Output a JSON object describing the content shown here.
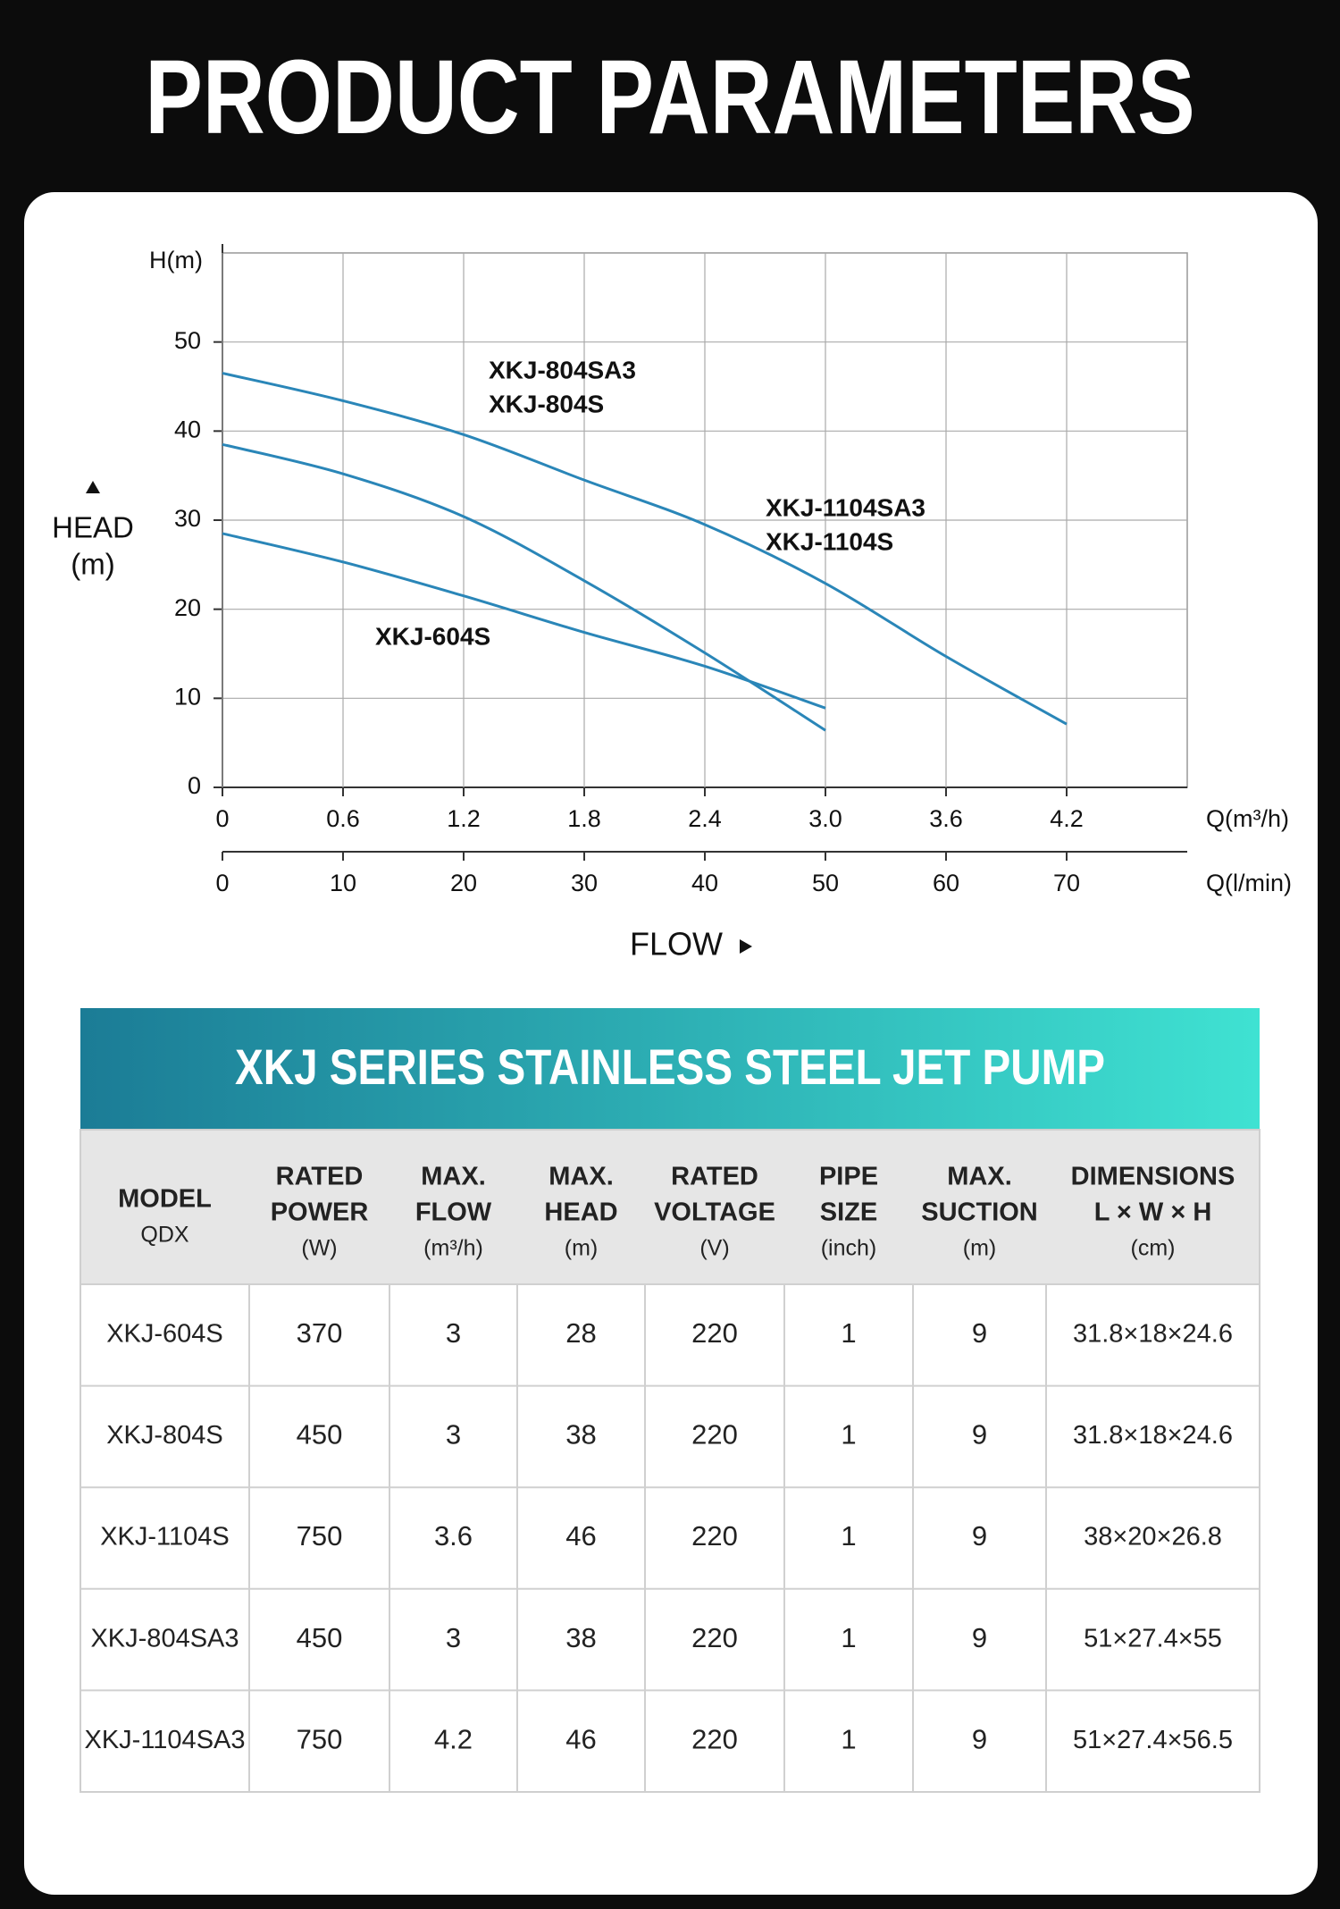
{
  "title": "PRODUCT PARAMETERS",
  "chart_data": {
    "type": "line",
    "y_unit_label": "H(m)",
    "y_axis_title": [
      "HEAD",
      "(m)"
    ],
    "x_unit_label": "Q(m³/h)",
    "x2_unit_label": "Q(l/min)",
    "x_axis_title": "FLOW",
    "xlim": [
      0,
      4.8
    ],
    "xticks": [
      0,
      0.6,
      1.2,
      1.8,
      2.4,
      {
        "value": 3,
        "label": "3.0"
      },
      3.6,
      4.2
    ],
    "x2lim": [
      0,
      80
    ],
    "x2ticks": [
      0,
      10,
      20,
      30,
      40,
      50,
      60,
      70
    ],
    "ylim": [
      0,
      60
    ],
    "yticks": [
      0,
      10,
      20,
      30,
      40,
      50
    ],
    "grid": true,
    "series": [
      {
        "labels": [
          "XKJ-1104SA3",
          "XKJ-1104S"
        ],
        "color": "#2a86b8",
        "x": [
          0,
          0.6,
          1.2,
          1.8,
          2.4,
          3.0,
          3.6,
          4.2
        ],
        "values": [
          46.5,
          43.4,
          39.6,
          34.5,
          29.5,
          22.9,
          14.7,
          7.1
        ]
      },
      {
        "labels": [
          "XKJ-804SA3",
          "XKJ-804S"
        ],
        "color": "#2a86b8",
        "x": [
          0,
          0.6,
          1.2,
          1.8,
          2.4,
          3.0
        ],
        "values": [
          38.5,
          35.2,
          30.4,
          23.2,
          15.1,
          6.4
        ]
      },
      {
        "labels": [
          "XKJ-604S"
        ],
        "color": "#2a86b8",
        "x": [
          0,
          0.6,
          1.2,
          1.8,
          2.4,
          3.0
        ],
        "values": [
          28.5,
          25.3,
          21.5,
          17.4,
          13.6,
          8.9
        ]
      }
    ]
  },
  "table": {
    "title": "XKJ SERIES STAINLESS STEEL JET PUMP",
    "header": [
      [
        "MODEL",
        "QDX"
      ],
      [
        "RATED",
        "POWER",
        "(W)"
      ],
      [
        "MAX.",
        "FLOW",
        "(m³/h)"
      ],
      [
        "MAX.",
        "HEAD",
        "(m)"
      ],
      [
        "RATED",
        "VOLTAGE",
        "(V)"
      ],
      [
        "PIPE",
        "SIZE",
        "(inch)"
      ],
      [
        "MAX.",
        "SUCTION",
        "(m)"
      ],
      [
        "DIMENSIONS",
        "L × W × H",
        "(cm)"
      ]
    ],
    "rows": [
      [
        "XKJ-604S",
        "370",
        "3",
        "28",
        "220",
        "1",
        "9",
        "31.8×18×24.6"
      ],
      [
        "XKJ-804S",
        "450",
        "3",
        "38",
        "220",
        "1",
        "9",
        "31.8×18×24.6"
      ],
      [
        "XKJ-1104S",
        "750",
        "3.6",
        "46",
        "220",
        "1",
        "9",
        "38×20×26.8"
      ],
      [
        "XKJ-804SA3",
        "450",
        "3",
        "38",
        "220",
        "1",
        "9",
        "51×27.4×55"
      ],
      [
        "XKJ-1104SA3",
        "750",
        "4.2",
        "46",
        "220",
        "1",
        "9",
        "51×27.4×56.5"
      ]
    ]
  }
}
